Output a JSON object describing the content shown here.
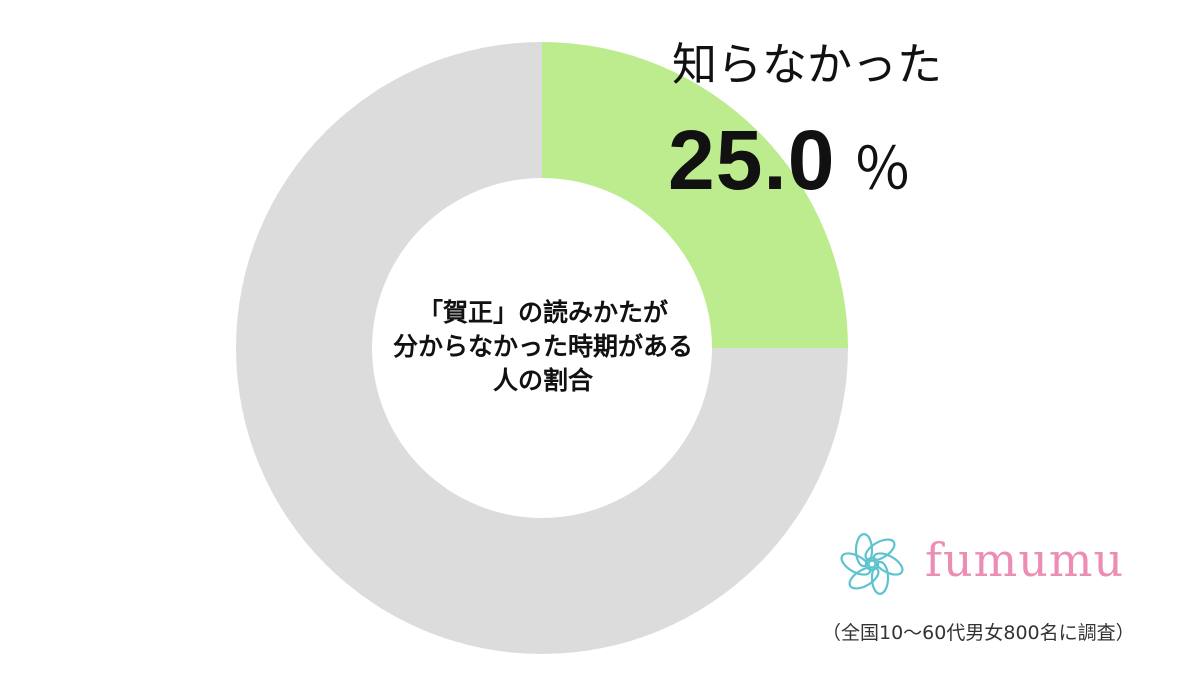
{
  "chart_data": {
    "type": "pie",
    "variant": "donut",
    "title": "「賀正」の読みかたが分からなかった時期がある人の割合",
    "title_lines": [
      "「賀正」の読みかたが",
      "分からなかった時期がある",
      "人の割合"
    ],
    "slices": [
      {
        "label": "知らなかった",
        "value": 25.0,
        "value_text": "25.0",
        "unit": "％",
        "color": "#bdec8e",
        "labeled": true
      },
      {
        "value": 75.0,
        "color": "#dcdcdc",
        "labeled": false
      }
    ],
    "start_angle": "12 o'clock",
    "direction": "clockwise"
  },
  "branding": {
    "logo_icon": "flower-logo-icon",
    "logo_text": "fumumu",
    "logo_text_color": "#ec8db4",
    "logo_icon_color": "#5cc3cf"
  },
  "source_note": "（全国10〜60代男女800名に調査）"
}
